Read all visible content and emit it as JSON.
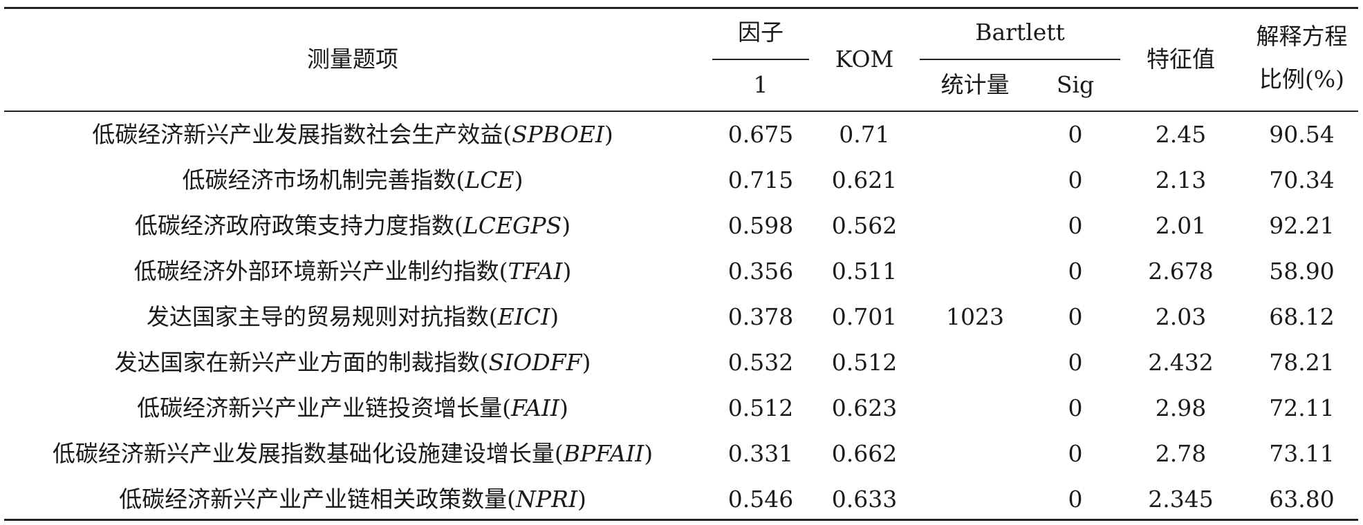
{
  "header": {
    "measure": "测量题项",
    "factor": "因子",
    "factor_sub": "1",
    "kom": "KOM",
    "bartlett": "Bartlett",
    "stat": "统计量",
    "sig": "Sig",
    "eigen": "特征值",
    "explain_line1": "解释方程",
    "explain_line2": "比例(%)"
  },
  "rows": [
    {
      "name": "低碳经济新兴产业发展指数社会生产效益",
      "abbr": "SPBOEI",
      "factor": "0.675",
      "kom": "0.71",
      "stat": "",
      "sig": "0",
      "eigen": "2.45",
      "ratio": "90.54"
    },
    {
      "name": "低碳经济市场机制完善指数",
      "abbr": "LCE",
      "factor": "0.715",
      "kom": "0.621",
      "stat": "",
      "sig": "0",
      "eigen": "2.13",
      "ratio": "70.34"
    },
    {
      "name": "低碳经济政府政策支持力度指数",
      "abbr": "LCEGPS",
      "factor": "0.598",
      "kom": "0.562",
      "stat": "",
      "sig": "0",
      "eigen": "2.01",
      "ratio": "92.21"
    },
    {
      "name": "低碳经济外部环境新兴产业制约指数",
      "abbr": "TFAI",
      "factor": "0.356",
      "kom": "0.511",
      "stat": "",
      "sig": "0",
      "eigen": "2.678",
      "ratio": "58.90"
    },
    {
      "name": "发达国家主导的贸易规则对抗指数",
      "abbr": "EICI",
      "factor": "0.378",
      "kom": "0.701",
      "stat": "1023",
      "sig": "0",
      "eigen": "2.03",
      "ratio": "68.12"
    },
    {
      "name": "发达国家在新兴产业方面的制裁指数",
      "abbr": "SIODFF",
      "factor": "0.532",
      "kom": "0.512",
      "stat": "",
      "sig": "0",
      "eigen": "2.432",
      "ratio": "78.21"
    },
    {
      "name": "低碳经济新兴产业产业链投资增长量",
      "abbr": "FAII",
      "factor": "0.512",
      "kom": "0.623",
      "stat": "",
      "sig": "0",
      "eigen": "2.98",
      "ratio": "72.11"
    },
    {
      "name": "低碳经济新兴产业发展指数基础化设施建设增长量",
      "abbr": "BPFAII",
      "factor": "0.331",
      "kom": "0.662",
      "stat": "",
      "sig": "0",
      "eigen": "2.78",
      "ratio": "73.11"
    },
    {
      "name": "低碳经济新兴产业产业链相关政策数量",
      "abbr": "NPRI",
      "factor": "0.546",
      "kom": "0.633",
      "stat": "",
      "sig": "0",
      "eigen": "2.345",
      "ratio": "63.80"
    }
  ]
}
